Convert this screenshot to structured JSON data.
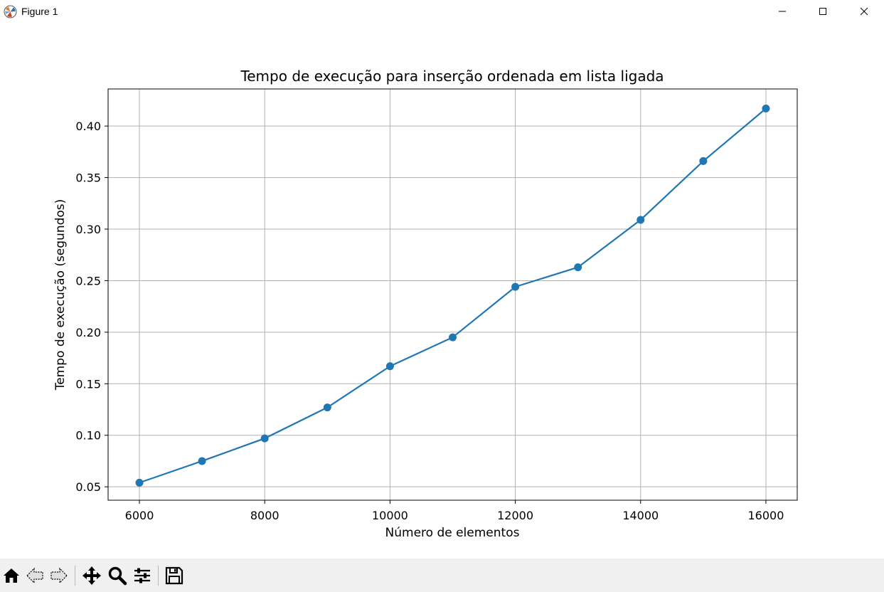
{
  "window": {
    "title": "Figure 1",
    "app_icon": "matplotlib-icon",
    "controls": [
      "minimize-icon",
      "maximize-icon",
      "close-icon"
    ]
  },
  "toolbar": {
    "buttons": [
      "home-icon",
      "back-icon",
      "forward-icon",
      "pan-icon",
      "zoom-icon",
      "configure-subplots-icon",
      "save-icon"
    ]
  },
  "colors": {
    "series": "#1f77b4",
    "grid": "#b0b0b0",
    "toolbar_bg": "#f0f0f0"
  },
  "chart_data": {
    "type": "line",
    "title": "Tempo de execução para inserção ordenada em lista ligada",
    "xlabel": "Número de elementos",
    "ylabel": "Tempo de execução (segundos)",
    "xlim": [
      5500,
      16500
    ],
    "ylim": [
      0.037,
      0.436
    ],
    "xticks": [
      6000,
      8000,
      10000,
      12000,
      14000,
      16000
    ],
    "yticks": [
      0.05,
      0.1,
      0.15,
      0.2,
      0.25,
      0.3,
      0.35,
      0.4
    ],
    "xtick_labels": [
      "6000",
      "8000",
      "10000",
      "12000",
      "14000",
      "16000"
    ],
    "ytick_labels": [
      "0.05",
      "0.10",
      "0.15",
      "0.20",
      "0.25",
      "0.30",
      "0.35",
      "0.40"
    ],
    "grid": true,
    "marker": "circle",
    "series": [
      {
        "x": [
          6000,
          7000,
          8000,
          9000,
          10000,
          11000,
          12000,
          13000,
          14000,
          15000,
          16000
        ],
        "values": [
          0.054,
          0.075,
          0.097,
          0.127,
          0.167,
          0.195,
          0.244,
          0.263,
          0.309,
          0.366,
          0.417
        ]
      }
    ]
  }
}
